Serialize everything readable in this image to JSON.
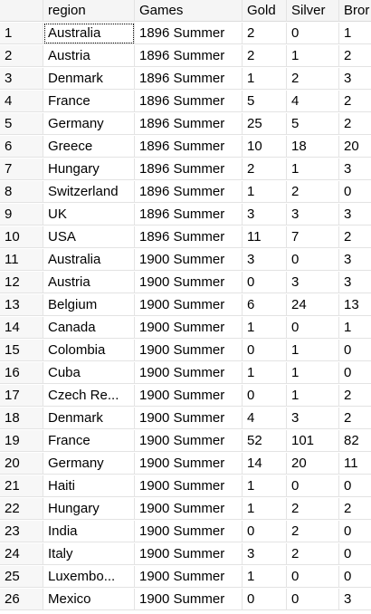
{
  "columns": [
    "",
    "region",
    "Games",
    "Gold",
    "Silver",
    "Bror"
  ],
  "rows": [
    {
      "n": "1",
      "region": "Australia",
      "games": "1896 Summer",
      "gold": "2",
      "silver": "0",
      "bronze": "1"
    },
    {
      "n": "2",
      "region": "Austria",
      "games": "1896 Summer",
      "gold": "2",
      "silver": "1",
      "bronze": "2"
    },
    {
      "n": "3",
      "region": "Denmark",
      "games": "1896 Summer",
      "gold": "1",
      "silver": "2",
      "bronze": "3"
    },
    {
      "n": "4",
      "region": "France",
      "games": "1896 Summer",
      "gold": "5",
      "silver": "4",
      "bronze": "2"
    },
    {
      "n": "5",
      "region": "Germany",
      "games": "1896 Summer",
      "gold": "25",
      "silver": "5",
      "bronze": "2"
    },
    {
      "n": "6",
      "region": "Greece",
      "games": "1896 Summer",
      "gold": "10",
      "silver": "18",
      "bronze": "20"
    },
    {
      "n": "7",
      "region": "Hungary",
      "games": "1896 Summer",
      "gold": "2",
      "silver": "1",
      "bronze": "3"
    },
    {
      "n": "8",
      "region": "Switzerland",
      "games": "1896 Summer",
      "gold": "1",
      "silver": "2",
      "bronze": "0"
    },
    {
      "n": "9",
      "region": "UK",
      "games": "1896 Summer",
      "gold": "3",
      "silver": "3",
      "bronze": "3"
    },
    {
      "n": "10",
      "region": "USA",
      "games": "1896 Summer",
      "gold": "11",
      "silver": "7",
      "bronze": "2"
    },
    {
      "n": "11",
      "region": "Australia",
      "games": "1900 Summer",
      "gold": "3",
      "silver": "0",
      "bronze": "3"
    },
    {
      "n": "12",
      "region": "Austria",
      "games": "1900 Summer",
      "gold": "0",
      "silver": "3",
      "bronze": "3"
    },
    {
      "n": "13",
      "region": "Belgium",
      "games": "1900 Summer",
      "gold": "6",
      "silver": "24",
      "bronze": "13"
    },
    {
      "n": "14",
      "region": "Canada",
      "games": "1900 Summer",
      "gold": "1",
      "silver": "0",
      "bronze": "1"
    },
    {
      "n": "15",
      "region": "Colombia",
      "games": "1900 Summer",
      "gold": "0",
      "silver": "1",
      "bronze": "0"
    },
    {
      "n": "16",
      "region": "Cuba",
      "games": "1900 Summer",
      "gold": "1",
      "silver": "1",
      "bronze": "0"
    },
    {
      "n": "17",
      "region": "Czech Re...",
      "games": "1900 Summer",
      "gold": "0",
      "silver": "1",
      "bronze": "2"
    },
    {
      "n": "18",
      "region": "Denmark",
      "games": "1900 Summer",
      "gold": "4",
      "silver": "3",
      "bronze": "2"
    },
    {
      "n": "19",
      "region": "France",
      "games": "1900 Summer",
      "gold": "52",
      "silver": "101",
      "bronze": "82"
    },
    {
      "n": "20",
      "region": "Germany",
      "games": "1900 Summer",
      "gold": "14",
      "silver": "20",
      "bronze": "11"
    },
    {
      "n": "21",
      "region": "Haiti",
      "games": "1900 Summer",
      "gold": "1",
      "silver": "0",
      "bronze": "0"
    },
    {
      "n": "22",
      "region": "Hungary",
      "games": "1900 Summer",
      "gold": "1",
      "silver": "2",
      "bronze": "2"
    },
    {
      "n": "23",
      "region": "India",
      "games": "1900 Summer",
      "gold": "0",
      "silver": "2",
      "bronze": "0"
    },
    {
      "n": "24",
      "region": "Italy",
      "games": "1900 Summer",
      "gold": "3",
      "silver": "2",
      "bronze": "0"
    },
    {
      "n": "25",
      "region": "Luxembo...",
      "games": "1900 Summer",
      "gold": "1",
      "silver": "0",
      "bronze": "0"
    },
    {
      "n": "26",
      "region": "Mexico",
      "games": "1900 Summer",
      "gold": "0",
      "silver": "0",
      "bronze": "3"
    }
  ]
}
